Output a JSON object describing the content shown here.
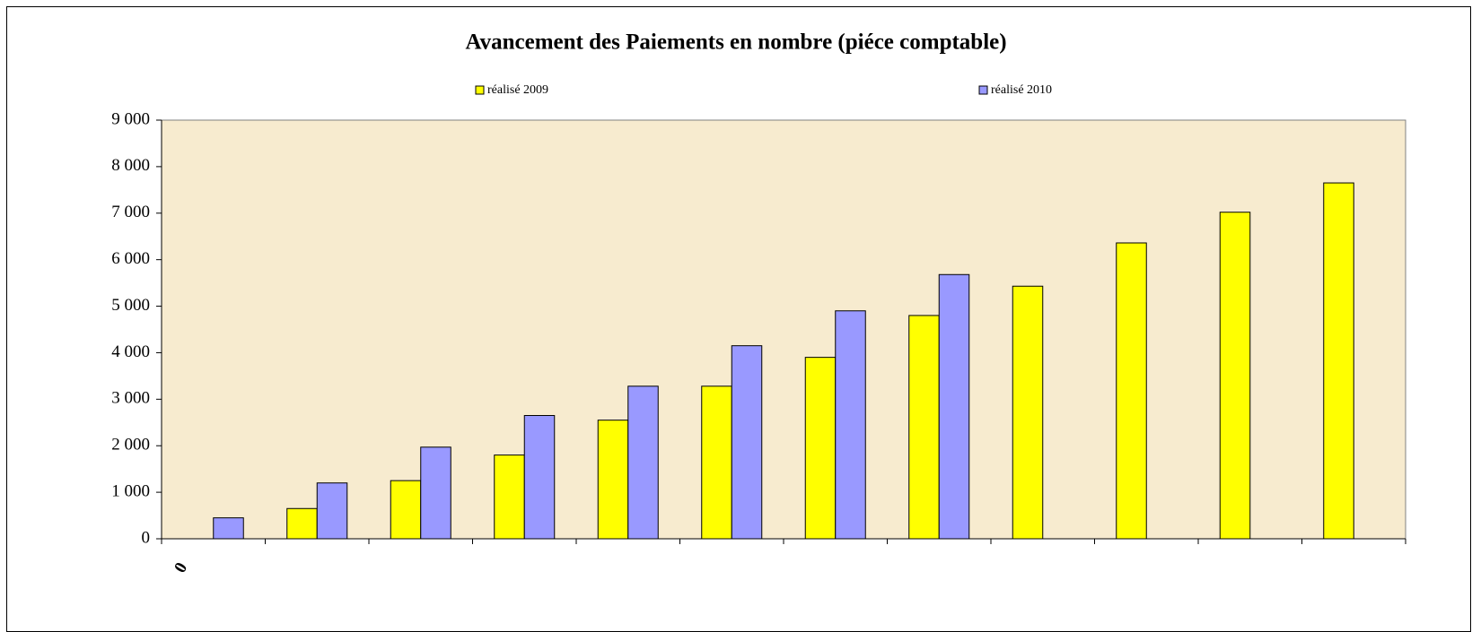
{
  "chart_data": {
    "type": "bar",
    "title": "Avancement des Paiements en nombre (piéce comptable)",
    "categories": [
      "0",
      null,
      null,
      null,
      null,
      null,
      null,
      null,
      null,
      null,
      null,
      null
    ],
    "series": [
      {
        "name": "réalisé 2009",
        "color": "#ffff00",
        "values": [
          0,
          650,
          1250,
          1800,
          2550,
          3280,
          3900,
          4800,
          5430,
          6360,
          7020,
          7650
        ]
      },
      {
        "name": "réalisé 2010",
        "color": "#9999ff",
        "values": [
          450,
          1200,
          1970,
          2650,
          3280,
          4150,
          4900,
          5680,
          null,
          null,
          null,
          null
        ]
      }
    ],
    "ylim": [
      0,
      9000
    ],
    "yticks": [
      0,
      {
        "value": 1000,
        "label": "1 000"
      },
      {
        "value": 2000,
        "label": "2 000"
      },
      {
        "value": 3000,
        "label": "3 000"
      },
      {
        "value": 4000,
        "label": "4 000"
      },
      {
        "value": 5000,
        "label": "5 000"
      },
      {
        "value": 6000,
        "label": "6 000"
      },
      {
        "value": 7000,
        "label": "7 000"
      },
      {
        "value": 8000,
        "label": "8 000"
      },
      {
        "value": 9000,
        "label": "9 000"
      }
    ],
    "legend_position": "top"
  }
}
